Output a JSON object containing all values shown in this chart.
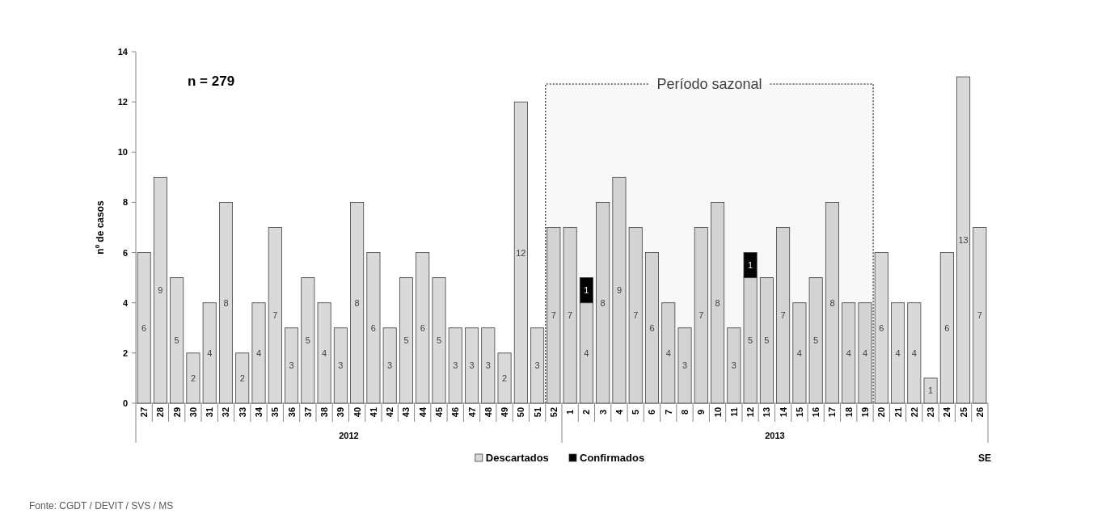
{
  "chart_data": {
    "type": "bar",
    "stacked": true,
    "ylabel": "nº de casos",
    "categories": [
      "27",
      "28",
      "29",
      "30",
      "31",
      "32",
      "33",
      "34",
      "35",
      "36",
      "37",
      "38",
      "39",
      "40",
      "41",
      "42",
      "43",
      "44",
      "45",
      "46",
      "47",
      "48",
      "49",
      "50",
      "51",
      "52",
      "1",
      "2",
      "3",
      "4",
      "5",
      "6",
      "7",
      "8",
      "9",
      "10",
      "11",
      "12",
      "13",
      "14",
      "15",
      "16",
      "17",
      "18",
      "19",
      "20",
      "21",
      "22",
      "23",
      "24",
      "25",
      "26"
    ],
    "series": [
      {
        "name": "Descartados",
        "color": "#d9d9d9",
        "values": [
          6,
          9,
          5,
          2,
          4,
          8,
          2,
          4,
          7,
          3,
          5,
          4,
          3,
          8,
          6,
          3,
          5,
          6,
          5,
          3,
          3,
          3,
          2,
          12,
          3,
          7,
          7,
          4,
          8,
          9,
          7,
          6,
          4,
          3,
          7,
          8,
          3,
          5,
          5,
          7,
          4,
          5,
          8,
          4,
          4,
          6,
          4,
          4,
          1,
          6,
          13,
          7
        ]
      },
      {
        "name": "Confirmados",
        "color": "#000000",
        "values": [
          null,
          null,
          null,
          null,
          null,
          null,
          null,
          null,
          null,
          null,
          null,
          null,
          null,
          null,
          null,
          null,
          null,
          null,
          null,
          null,
          null,
          null,
          null,
          null,
          null,
          null,
          null,
          1,
          null,
          null,
          null,
          null,
          null,
          null,
          null,
          null,
          null,
          1,
          null,
          null,
          null,
          null,
          null,
          null,
          null,
          null,
          null,
          null,
          null,
          null,
          null,
          null
        ]
      }
    ],
    "ylim": [
      0,
      14
    ],
    "yticks": [
      0,
      2,
      4,
      6,
      8,
      10,
      12,
      14
    ],
    "grid": false,
    "legend": "bottom",
    "data_labels": true,
    "annotations": [
      "n = 279",
      "2012",
      "2013",
      "SE",
      "Fonte: CGDT / DEVIT / SVS / MS"
    ],
    "bands": [
      {
        "axis": "x",
        "from": "52",
        "to": "19",
        "label": "Período sazonal",
        "color": "#555555"
      }
    ]
  }
}
